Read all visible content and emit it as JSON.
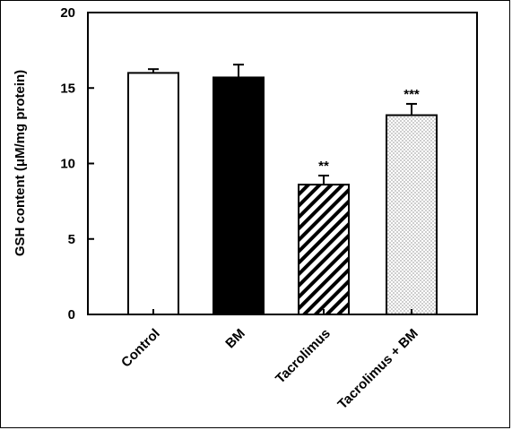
{
  "chart_data": {
    "type": "bar",
    "ylabel": "GSH content (μM/mg protein)",
    "ylim": [
      0,
      20
    ],
    "yticks": [
      "0",
      "5",
      "10",
      "15",
      "20"
    ],
    "categories": [
      "Control",
      "BM",
      "Tacrolimus",
      "Tacrolimus + BM"
    ],
    "values": [
      16.0,
      15.7,
      8.6,
      13.2
    ],
    "errors": [
      0.25,
      0.85,
      0.6,
      0.75
    ],
    "significance": [
      "",
      "",
      "**",
      "***"
    ],
    "fills": [
      "white",
      "black",
      "diagonal-hatch",
      "dotted"
    ],
    "grid": false
  }
}
